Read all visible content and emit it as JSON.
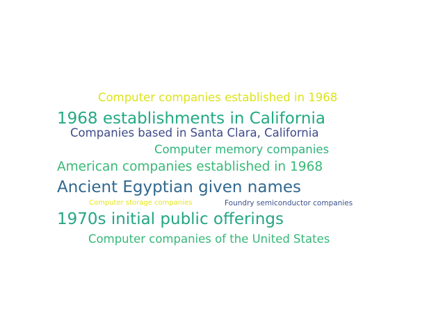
{
  "words": [
    {
      "text": "Computer companies established in 1968",
      "color": "#dde318"
    },
    {
      "text": "1968 establishments in California",
      "color": "#23a983"
    },
    {
      "text": "Companies based in Santa Clara, California",
      "color": "#3e4a89"
    },
    {
      "text": "Computer memory companies",
      "color": "#2eb37c"
    },
    {
      "text": "American companies established in 1968",
      "color": "#38b977"
    },
    {
      "text": "Ancient Egyptian given names",
      "color": "#31688e"
    },
    {
      "text": "Computer storage companies",
      "color": "#e5e419"
    },
    {
      "text": "Foundry semiconductor companies",
      "color": "#3b528b"
    },
    {
      "text": "1970s initial public offerings",
      "color": "#25a584"
    },
    {
      "text": "Computer companies of the United States",
      "color": "#35b779"
    }
  ]
}
